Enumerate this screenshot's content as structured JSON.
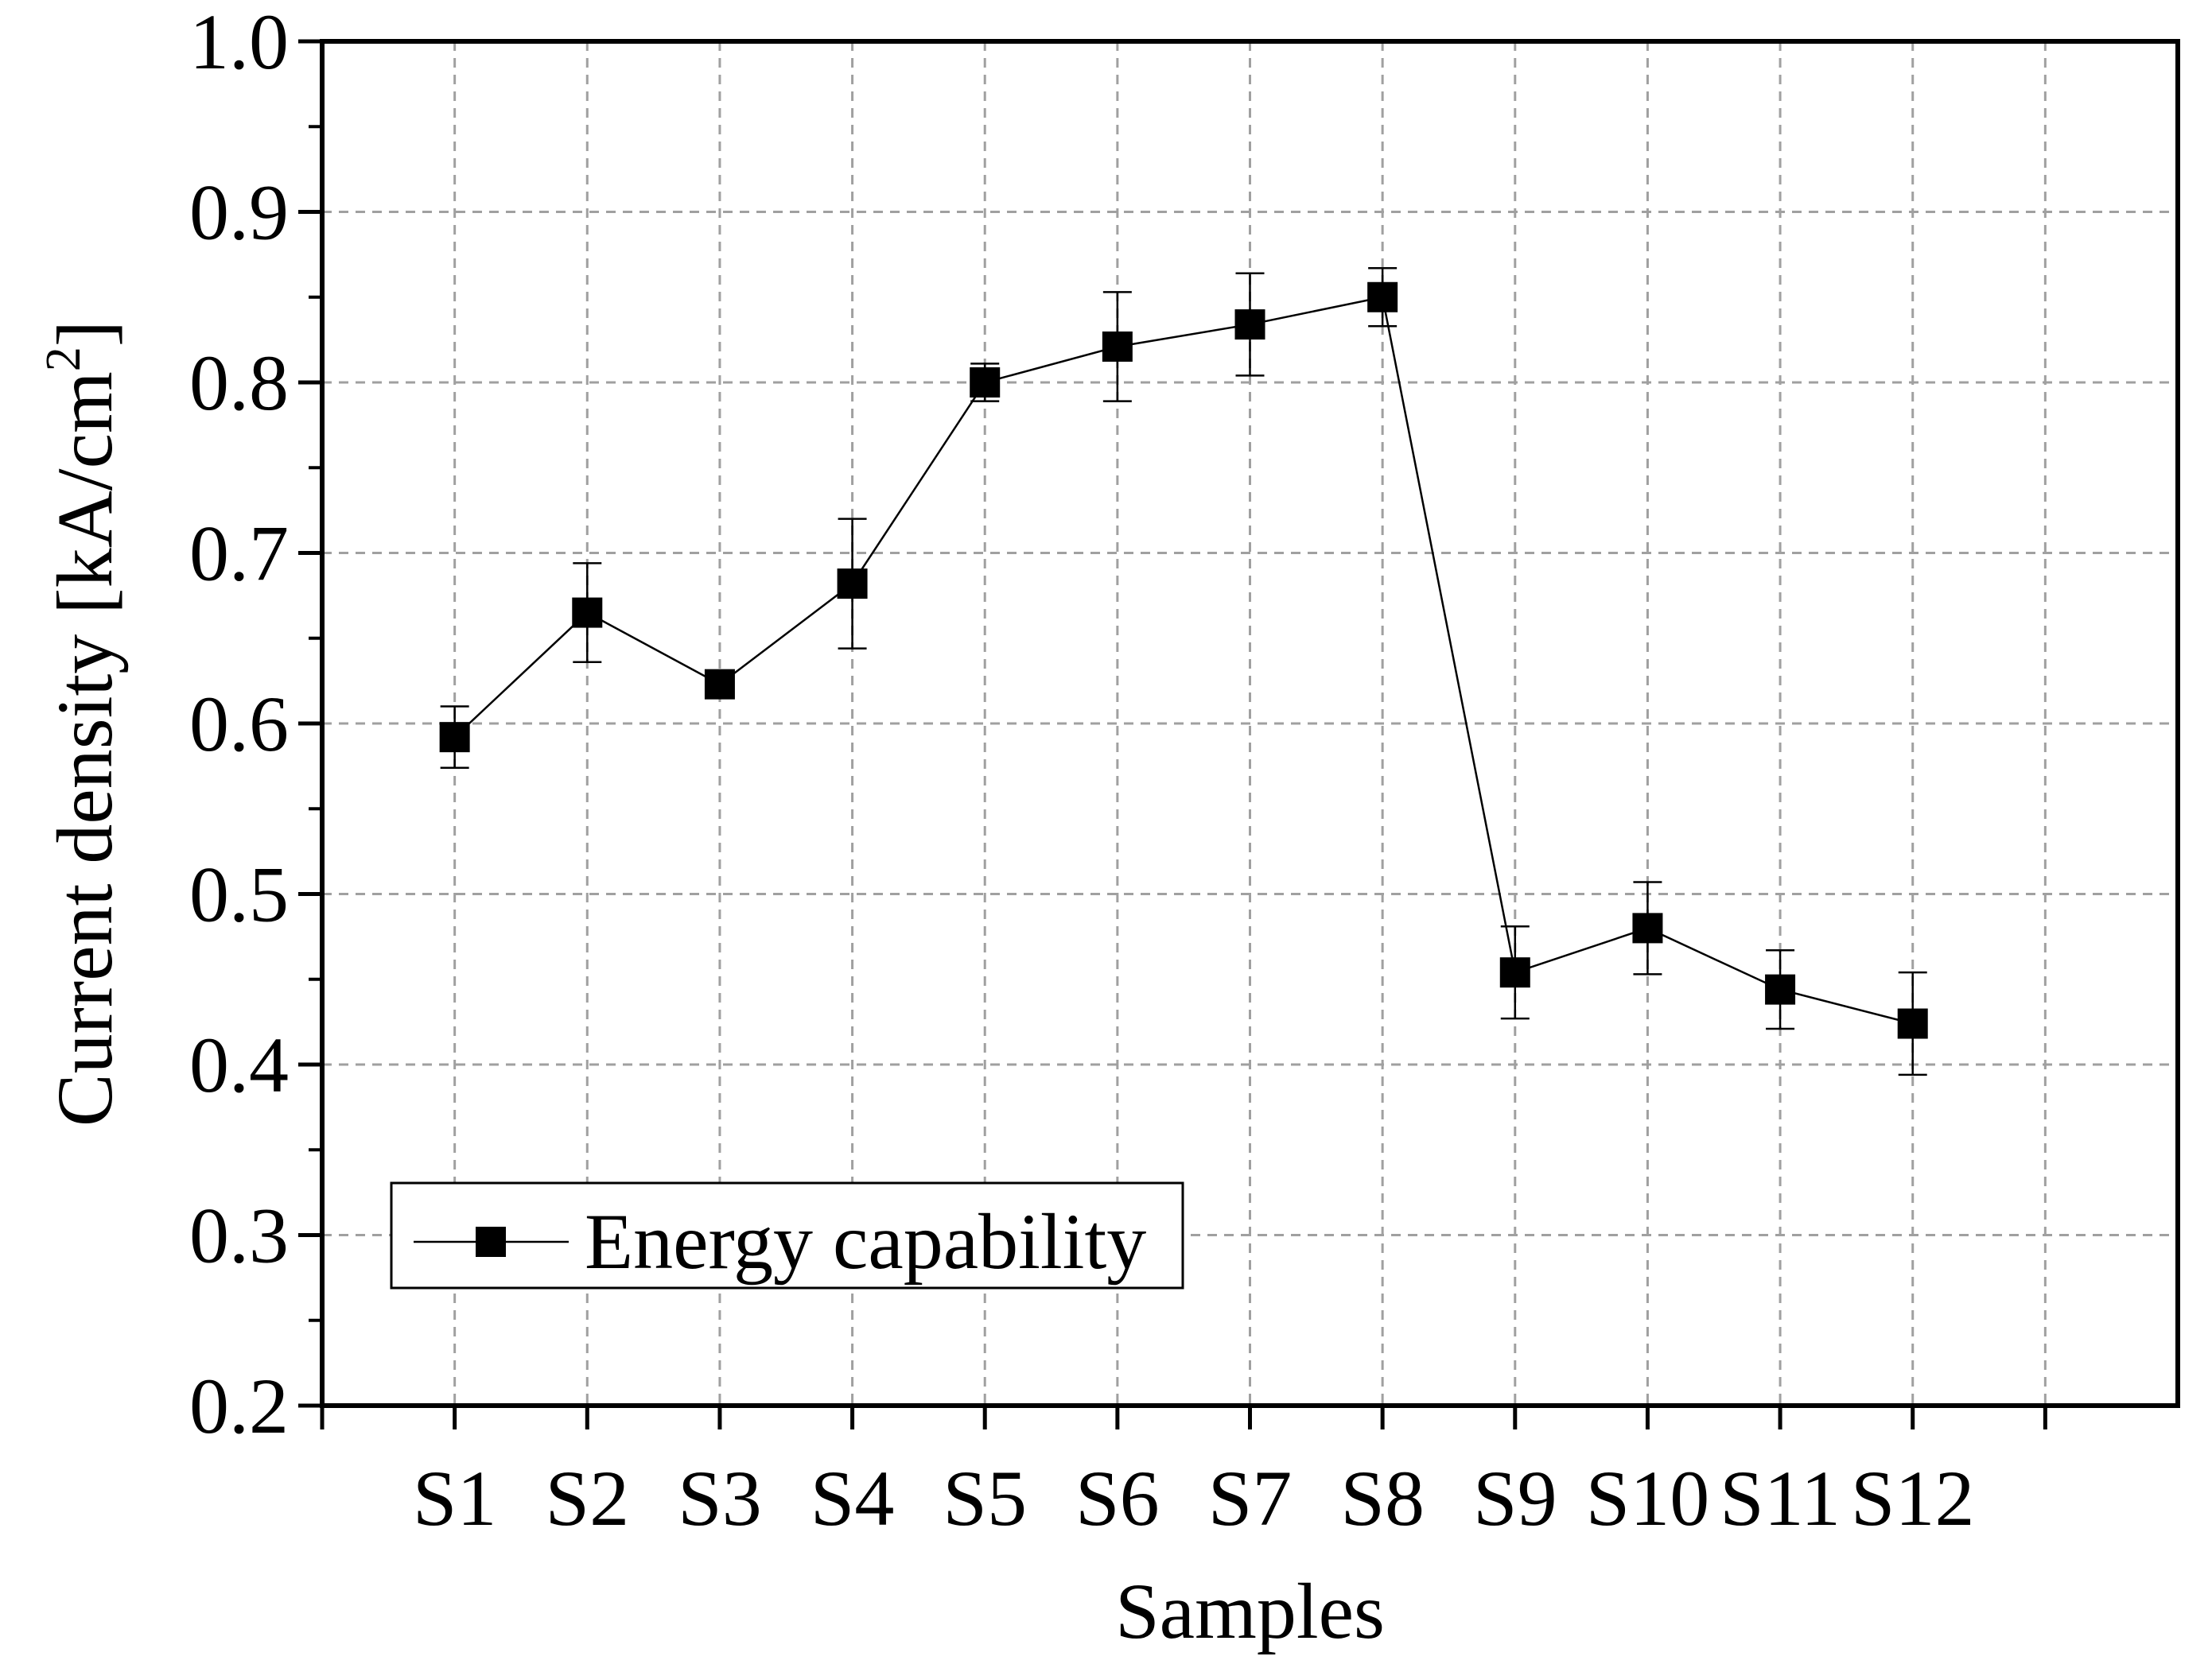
{
  "chart_data": {
    "type": "line",
    "xlabel": "Samples",
    "ylabel": "Current density [kA/cm",
    "ylabel_sup": "2",
    "ylabel_end": "]",
    "categories": [
      "S1",
      "S2",
      "S3",
      "S4",
      "S5",
      "S6",
      "S7",
      "S8",
      "S9",
      "S10",
      "S11",
      "S12"
    ],
    "ylim": [
      0.2,
      1.0
    ],
    "yticks": [
      "0.2",
      "0.3",
      "0.4",
      "0.5",
      "0.6",
      "0.7",
      "0.8",
      "0.9",
      "1.0"
    ],
    "grid": true,
    "legend_position": "bottom-left",
    "series": [
      {
        "name": "Energy capability",
        "values": [
          0.592,
          0.665,
          0.623,
          0.682,
          0.8,
          0.821,
          0.834,
          0.85,
          0.454,
          0.48,
          0.444,
          0.424
        ],
        "error": [
          0.018,
          0.029,
          0.005,
          0.038,
          0.011,
          0.032,
          0.03,
          0.017,
          0.027,
          0.027,
          0.023,
          0.03
        ],
        "color": "#000000",
        "marker": "square"
      }
    ]
  }
}
